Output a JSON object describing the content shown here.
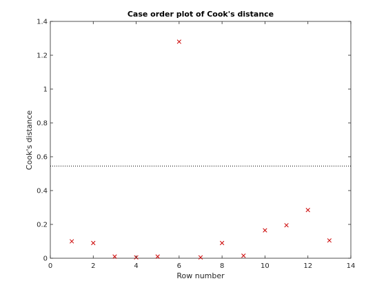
{
  "chart_data": {
    "type": "scatter",
    "title": "Case order plot of Cook's distance",
    "xlabel": "Row number",
    "ylabel": "Cook's distance",
    "xlim": [
      0,
      14
    ],
    "ylim": [
      0,
      1.4
    ],
    "xticks": [
      "0",
      "2",
      "4",
      "6",
      "8",
      "10",
      "12",
      "14"
    ],
    "yticks": [
      "0",
      "0.2",
      "0.4",
      "0.6",
      "0.8",
      "1",
      "1.2",
      "1.4"
    ],
    "grid": false,
    "marker": "x",
    "marker_color": "#cc0000",
    "points": [
      {
        "x": 1,
        "y": 0.1
      },
      {
        "x": 2,
        "y": 0.09
      },
      {
        "x": 3,
        "y": 0.01
      },
      {
        "x": 4,
        "y": 0.005
      },
      {
        "x": 5,
        "y": 0.01
      },
      {
        "x": 6,
        "y": 1.28
      },
      {
        "x": 7,
        "y": 0.005
      },
      {
        "x": 8,
        "y": 0.09
      },
      {
        "x": 9,
        "y": 0.015
      },
      {
        "x": 10,
        "y": 0.165
      },
      {
        "x": 11,
        "y": 0.195
      },
      {
        "x": 12,
        "y": 0.285
      },
      {
        "x": 13,
        "y": 0.105
      }
    ],
    "reference_line": {
      "y": 0.545,
      "style": "dotted",
      "color": "#000000"
    }
  }
}
